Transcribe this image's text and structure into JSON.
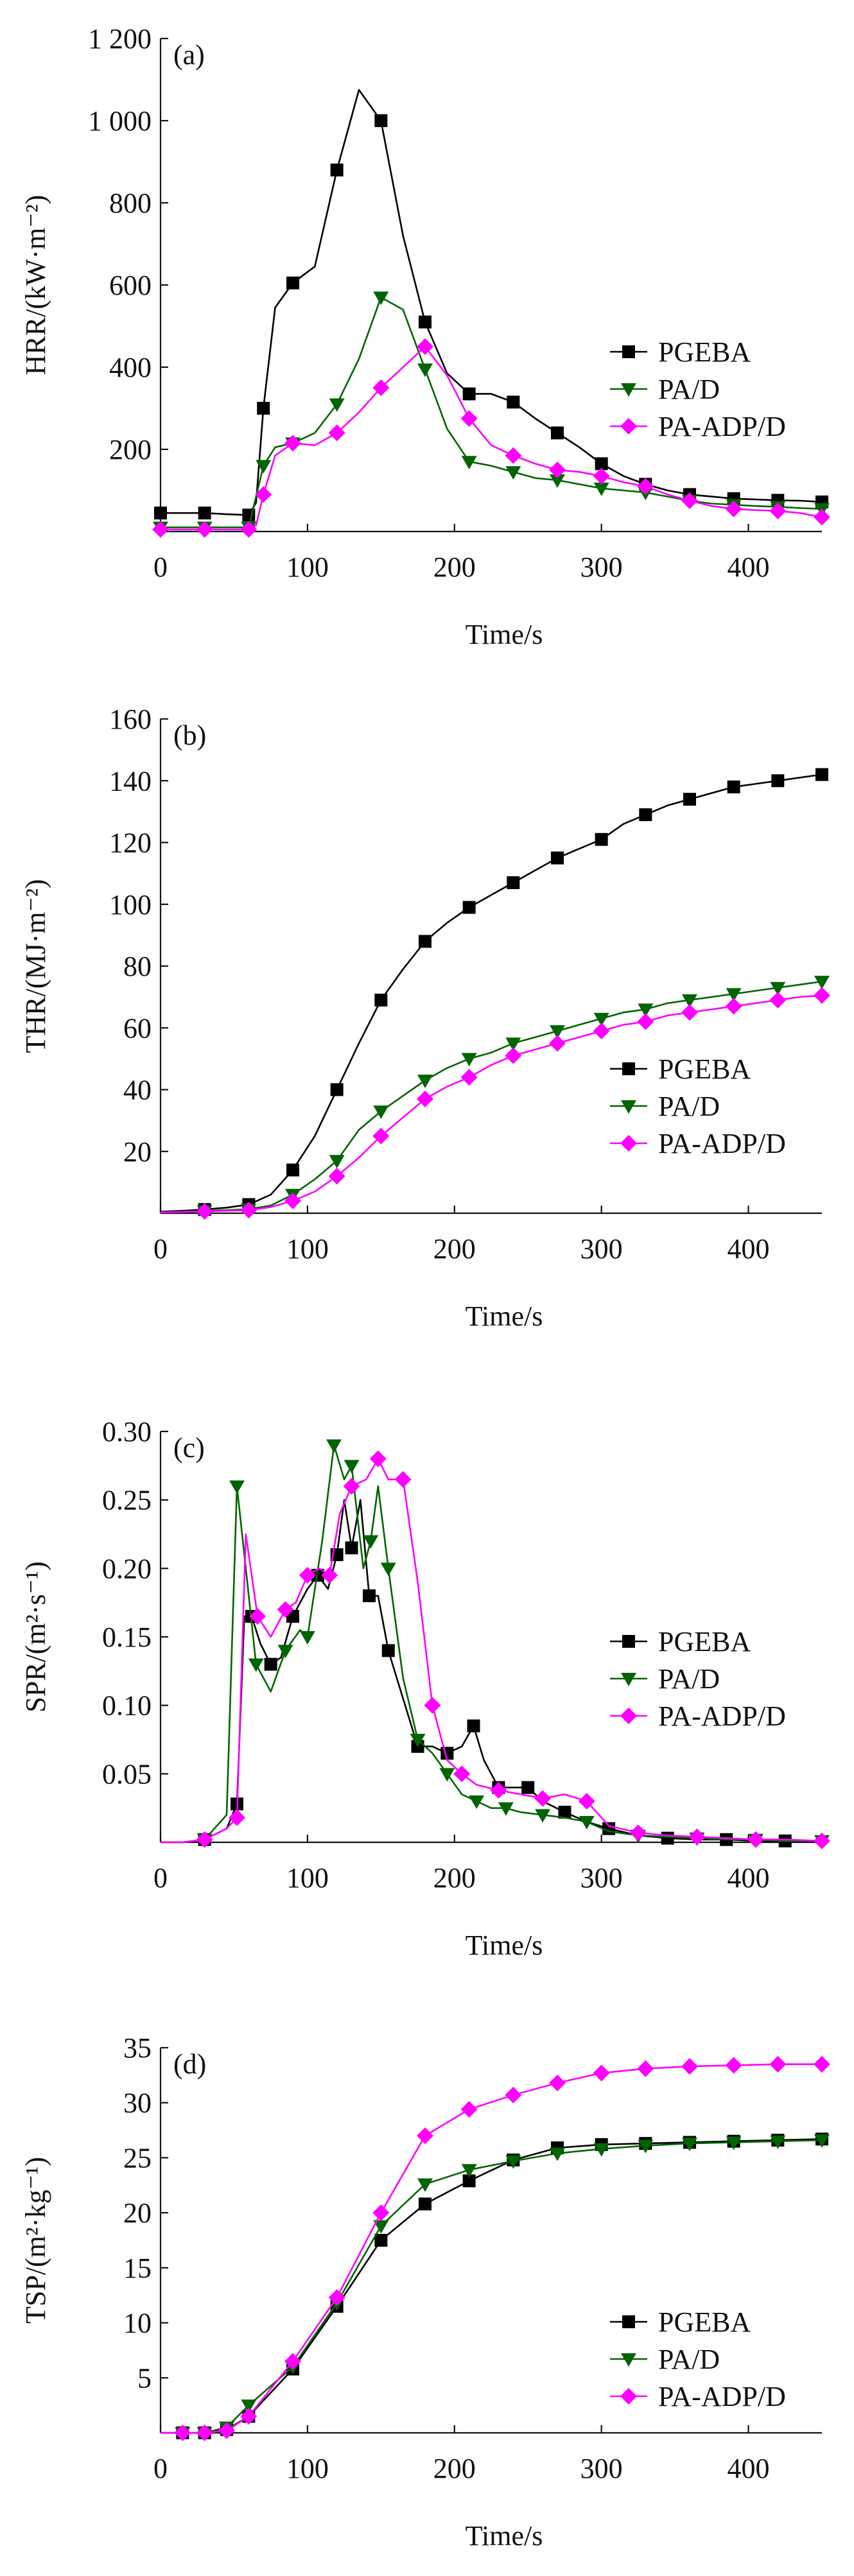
{
  "chart_data": [
    {
      "type": "line",
      "panel_label": "(a)",
      "xlabel": "Time/s",
      "ylabel": "HRR/(kW·m⁻²)",
      "xlim": [
        0,
        450
      ],
      "ylim": [
        0,
        1200
      ],
      "xticks": [
        0,
        100,
        200,
        300,
        400
      ],
      "yticks": [
        200,
        400,
        600,
        800,
        1000,
        1200
      ],
      "ytick_labels": [
        "200",
        "400",
        "600",
        "800",
        "1 000",
        "1 200"
      ],
      "legend_position": "right",
      "series": [
        {
          "name": "PGEBA",
          "color": "#000000",
          "marker": "square",
          "x": [
            0,
            15,
            30,
            45,
            60,
            65,
            70,
            78,
            90,
            105,
            120,
            135,
            150,
            165,
            180,
            195,
            210,
            225,
            240,
            255,
            270,
            285,
            300,
            315,
            330,
            345,
            360,
            375,
            390,
            405,
            420,
            435,
            450
          ],
          "y": [
            45,
            45,
            45,
            42,
            40,
            70,
            300,
            545,
            605,
            645,
            880,
            1075,
            1000,
            720,
            510,
            385,
            335,
            335,
            315,
            275,
            240,
            205,
            165,
            135,
            115,
            100,
            90,
            85,
            80,
            78,
            76,
            75,
            72
          ]
        },
        {
          "name": "PA/D",
          "color": "#006400",
          "marker": "triangle-down",
          "x": [
            0,
            15,
            30,
            45,
            60,
            65,
            70,
            78,
            90,
            105,
            120,
            135,
            150,
            165,
            180,
            195,
            210,
            225,
            240,
            255,
            270,
            285,
            300,
            315,
            330,
            345,
            360,
            375,
            390,
            405,
            420,
            435,
            450
          ],
          "y": [
            10,
            10,
            10,
            10,
            10,
            85,
            160,
            205,
            215,
            240,
            310,
            420,
            570,
            540,
            395,
            250,
            170,
            160,
            145,
            130,
            125,
            115,
            105,
            100,
            95,
            85,
            75,
            68,
            65,
            62,
            60,
            57,
            55
          ]
        },
        {
          "name": "PA-ADP/D",
          "color": "#ff00ff",
          "marker": "diamond",
          "x": [
            0,
            15,
            30,
            45,
            60,
            65,
            70,
            78,
            90,
            105,
            120,
            135,
            150,
            165,
            180,
            195,
            210,
            225,
            240,
            255,
            270,
            285,
            300,
            315,
            330,
            345,
            360,
            375,
            390,
            405,
            420,
            435,
            450
          ],
          "y": [
            5,
            5,
            5,
            5,
            5,
            15,
            90,
            185,
            215,
            210,
            240,
            290,
            350,
            400,
            450,
            380,
            275,
            210,
            185,
            165,
            150,
            145,
            135,
            120,
            110,
            90,
            75,
            62,
            55,
            52,
            50,
            45,
            35
          ]
        }
      ]
    },
    {
      "type": "line",
      "panel_label": "(b)",
      "xlabel": "Time/s",
      "ylabel": "THR/(MJ·m⁻²)",
      "xlim": [
        0,
        450
      ],
      "ylim": [
        0,
        160
      ],
      "xticks": [
        0,
        100,
        200,
        300,
        400
      ],
      "yticks": [
        20,
        40,
        60,
        80,
        100,
        120,
        140,
        160
      ],
      "ytick_labels": [
        "20",
        "40",
        "60",
        "80",
        "100",
        "120",
        "140",
        "160"
      ],
      "legend_position": "bottom-right",
      "series": [
        {
          "name": "PGEBA",
          "color": "#000000",
          "marker": "square",
          "x": [
            0,
            15,
            30,
            45,
            60,
            75,
            90,
            105,
            120,
            135,
            150,
            165,
            180,
            195,
            210,
            225,
            240,
            255,
            270,
            285,
            300,
            315,
            330,
            345,
            360,
            375,
            390,
            405,
            420,
            435,
            450
          ],
          "y": [
            0.5,
            0.8,
            1.2,
            1.8,
            2.8,
            6,
            14,
            25,
            40,
            55,
            69,
            79,
            88,
            94,
            99,
            103,
            107,
            111,
            115,
            118,
            121,
            126,
            129,
            132,
            134,
            136,
            138,
            139,
            140,
            141,
            142
          ]
        },
        {
          "name": "PA/D",
          "color": "#006400",
          "marker": "triangle-down",
          "x": [
            0,
            15,
            30,
            45,
            60,
            75,
            90,
            105,
            120,
            135,
            150,
            165,
            180,
            195,
            210,
            225,
            240,
            255,
            270,
            285,
            300,
            315,
            330,
            345,
            360,
            375,
            390,
            405,
            420,
            435,
            450
          ],
          "y": [
            0.3,
            0.5,
            0.7,
            1,
            1.3,
            2.5,
            6,
            11,
            17,
            27,
            33,
            38,
            43,
            47,
            50,
            52,
            55,
            57,
            59,
            61,
            63,
            65,
            66,
            68,
            69,
            70,
            71,
            72,
            73,
            74,
            75
          ]
        },
        {
          "name": "PA-ADP/D",
          "color": "#ff00ff",
          "marker": "diamond",
          "x": [
            0,
            15,
            30,
            45,
            60,
            75,
            90,
            105,
            120,
            135,
            150,
            165,
            180,
            195,
            210,
            225,
            240,
            255,
            270,
            285,
            300,
            315,
            330,
            345,
            360,
            375,
            390,
            405,
            420,
            435,
            450
          ],
          "y": [
            0.3,
            0.4,
            0.6,
            0.8,
            1,
            2,
            4,
            7,
            12,
            18,
            25,
            31,
            37,
            41,
            44,
            48,
            51,
            53,
            55,
            57,
            59,
            61,
            62,
            64,
            65,
            66,
            67,
            68,
            69,
            70,
            70.5
          ]
        }
      ]
    },
    {
      "type": "line",
      "panel_label": "(c)",
      "xlabel": "Time/s",
      "ylabel": "SPR/(m²·s⁻¹)",
      "xlim": [
        0,
        450
      ],
      "ylim": [
        0,
        0.3
      ],
      "xticks": [
        0,
        100,
        200,
        300,
        400
      ],
      "yticks": [
        0.05,
        0.1,
        0.15,
        0.2,
        0.25,
        0.3
      ],
      "ytick_labels": [
        "0.05",
        "0.10",
        "0.15",
        "0.20",
        "0.25",
        "0.30"
      ],
      "legend_position": "right",
      "series": [
        {
          "name": "PGEBA",
          "color": "#000000",
          "marker": "square",
          "x": [
            0,
            15,
            30,
            45,
            52,
            57,
            62,
            68,
            75,
            82,
            90,
            100,
            107,
            114,
            120,
            125,
            130,
            136,
            142,
            148,
            155,
            165,
            175,
            185,
            195,
            205,
            213,
            220,
            230,
            240,
            250,
            260,
            275,
            290,
            305,
            325,
            345,
            365,
            385,
            405,
            425,
            450
          ],
          "y": [
            0,
            0,
            0.002,
            0.01,
            0.028,
            0.165,
            0.165,
            0.145,
            0.13,
            0.135,
            0.165,
            0.185,
            0.195,
            0.185,
            0.21,
            0.25,
            0.215,
            0.25,
            0.18,
            0.18,
            0.14,
            0.105,
            0.07,
            0.07,
            0.065,
            0.07,
            0.085,
            0.06,
            0.04,
            0.04,
            0.04,
            0.03,
            0.022,
            0.015,
            0.01,
            0.005,
            0.003,
            0.002,
            0.002,
            0.001,
            0.001,
            0.001
          ]
        },
        {
          "name": "PA/D",
          "color": "#006400",
          "marker": "triangle-down",
          "x": [
            0,
            15,
            30,
            45,
            52,
            58,
            65,
            75,
            85,
            95,
            100,
            110,
            118,
            125,
            130,
            138,
            143,
            148,
            155,
            165,
            175,
            185,
            195,
            205,
            215,
            225,
            235,
            245,
            260,
            275,
            290,
            305,
            325,
            345,
            365,
            385,
            405,
            425,
            450
          ],
          "y": [
            0,
            0,
            0.002,
            0.02,
            0.26,
            0.2,
            0.13,
            0.11,
            0.14,
            0.155,
            0.15,
            0.22,
            0.29,
            0.265,
            0.275,
            0.2,
            0.22,
            0.26,
            0.2,
            0.12,
            0.075,
            0.065,
            0.05,
            0.035,
            0.03,
            0.025,
            0.025,
            0.022,
            0.02,
            0.018,
            0.015,
            0.008,
            0.005,
            0.004,
            0.003,
            0.002,
            0.002,
            0.001,
            0.001
          ]
        },
        {
          "name": "PA-ADP/D",
          "color": "#ff00ff",
          "marker": "diamond",
          "x": [
            0,
            15,
            30,
            45,
            52,
            58,
            66,
            75,
            85,
            92,
            100,
            108,
            115,
            122,
            130,
            140,
            148,
            155,
            165,
            175,
            185,
            195,
            205,
            215,
            230,
            245,
            260,
            275,
            290,
            305,
            325,
            345,
            365,
            385,
            405,
            425,
            450
          ],
          "y": [
            0,
            0,
            0.002,
            0.01,
            0.018,
            0.225,
            0.165,
            0.15,
            0.17,
            0.175,
            0.195,
            0.2,
            0.195,
            0.24,
            0.26,
            0.265,
            0.28,
            0.265,
            0.265,
            0.19,
            0.1,
            0.06,
            0.05,
            0.042,
            0.038,
            0.035,
            0.032,
            0.035,
            0.03,
            0.012,
            0.007,
            0.005,
            0.004,
            0.003,
            0.002,
            0.002,
            0.001
          ]
        }
      ]
    },
    {
      "type": "line",
      "panel_label": "(d)",
      "xlabel": "Time/s",
      "ylabel": "TSP/(m²·kg⁻¹)",
      "xlim": [
        0,
        450
      ],
      "ylim": [
        0,
        35
      ],
      "xticks": [
        0,
        100,
        200,
        300,
        400
      ],
      "yticks": [
        5,
        10,
        15,
        20,
        25,
        30,
        35
      ],
      "ytick_labels": [
        "5",
        "10",
        "15",
        "20",
        "25",
        "30",
        "35"
      ],
      "legend_position": "bottom-right",
      "series": [
        {
          "name": "PGEBA",
          "color": "#000000",
          "marker": "square",
          "x": [
            0,
            15,
            30,
            45,
            60,
            90,
            120,
            150,
            180,
            210,
            240,
            270,
            300,
            330,
            360,
            390,
            420,
            450
          ],
          "y": [
            0,
            0,
            0,
            0.3,
            1.5,
            5.8,
            11.5,
            17.5,
            20.8,
            22.9,
            24.8,
            25.9,
            26.2,
            26.3,
            26.4,
            26.5,
            26.6,
            26.7
          ]
        },
        {
          "name": "PA/D",
          "color": "#006400",
          "marker": "triangle-down",
          "x": [
            0,
            15,
            30,
            45,
            60,
            90,
            120,
            150,
            180,
            210,
            240,
            270,
            300,
            330,
            360,
            390,
            420,
            450
          ],
          "y": [
            0,
            0,
            0,
            0.5,
            2.5,
            6,
            11.8,
            18.8,
            22.6,
            23.9,
            24.7,
            25.4,
            25.8,
            26.1,
            26.3,
            26.4,
            26.5,
            26.6
          ]
        },
        {
          "name": "PA-ADP/D",
          "color": "#ff00ff",
          "marker": "diamond",
          "x": [
            0,
            15,
            30,
            45,
            60,
            90,
            120,
            150,
            180,
            210,
            240,
            270,
            300,
            330,
            360,
            390,
            420,
            450
          ],
          "y": [
            0,
            0,
            0,
            0.2,
            1.5,
            6.5,
            12.3,
            20,
            27,
            29.4,
            30.7,
            31.8,
            32.7,
            33.1,
            33.3,
            33.4,
            33.5,
            33.5
          ]
        }
      ]
    }
  ]
}
